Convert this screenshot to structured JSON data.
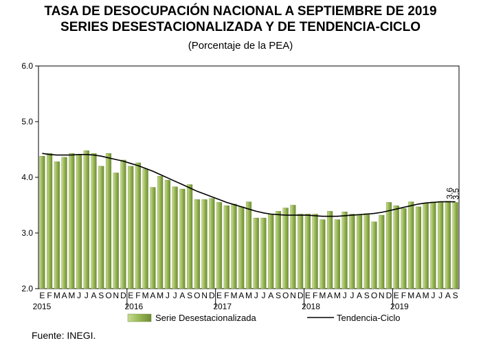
{
  "header": {
    "title": "TASA DE DESOCUPACIÓN NACIONAL A SEPTIEMBRE DE 2019",
    "subtitle": "SERIES DESESTACIONALIZADA Y DE TENDENCIA-CICLO",
    "unit": "(Porcentaje de la PEA)"
  },
  "footer": {
    "source": "Fuente: INEGI."
  },
  "colors": {
    "bar_fill": "#9bbb59",
    "bar_dark": "#6f8a35",
    "trend": "#000000"
  },
  "chart_data": {
    "type": "bar",
    "title": "TASA DE DESOCUPACIÓN NACIONAL A SEPTIEMBRE DE 2019",
    "ylim": [
      2.0,
      6.0
    ],
    "yticks": [
      "2.0",
      "3.0",
      "4.0",
      "5.0",
      "6.0"
    ],
    "grid": false,
    "legend": "bottom",
    "month_labels": [
      "E",
      "F",
      "M",
      "A",
      "M",
      "J",
      "J",
      "A",
      "S",
      "O",
      "N",
      "D",
      "E",
      "F",
      "M",
      "A",
      "M",
      "J",
      "J",
      "A",
      "S",
      "O",
      "N",
      "D",
      "E",
      "F",
      "M",
      "A",
      "M",
      "J",
      "J",
      "A",
      "S",
      "O",
      "N",
      "D",
      "E",
      "F",
      "M",
      "A",
      "M",
      "J",
      "J",
      "A",
      "S",
      "O",
      "N",
      "D",
      "E",
      "F",
      "M",
      "A",
      "M",
      "J",
      "J",
      "A",
      "S"
    ],
    "year_labels": [
      {
        "label": "2015",
        "index": 0
      },
      {
        "label": "2016",
        "index": 12
      },
      {
        "label": "2017",
        "index": 24
      },
      {
        "label": "2018",
        "index": 36
      },
      {
        "label": "2019",
        "index": 48
      }
    ],
    "series": [
      {
        "name": "Serie Desestacionalizada",
        "type": "bar",
        "values": [
          4.38,
          4.43,
          4.28,
          4.36,
          4.43,
          4.4,
          4.48,
          4.43,
          4.2,
          4.43,
          4.08,
          4.31,
          4.2,
          4.26,
          4.15,
          3.82,
          4.02,
          3.95,
          3.83,
          3.79,
          3.87,
          3.6,
          3.6,
          3.62,
          3.55,
          3.49,
          3.52,
          3.47,
          3.56,
          3.27,
          3.27,
          3.34,
          3.39,
          3.45,
          3.5,
          3.34,
          3.34,
          3.34,
          3.24,
          3.39,
          3.24,
          3.38,
          3.34,
          3.33,
          3.35,
          3.2,
          3.32,
          3.55,
          3.49,
          3.44,
          3.56,
          3.47,
          3.54,
          3.56,
          3.56,
          3.57,
          3.55
        ]
      },
      {
        "name": "Tendencia-Ciclo",
        "type": "line",
        "values": [
          4.43,
          4.41,
          4.4,
          4.4,
          4.4,
          4.41,
          4.41,
          4.4,
          4.38,
          4.35,
          4.32,
          4.29,
          4.25,
          4.21,
          4.16,
          4.11,
          4.05,
          3.99,
          3.93,
          3.87,
          3.81,
          3.75,
          3.7,
          3.65,
          3.6,
          3.55,
          3.51,
          3.47,
          3.43,
          3.39,
          3.36,
          3.34,
          3.33,
          3.32,
          3.32,
          3.32,
          3.32,
          3.31,
          3.3,
          3.3,
          3.3,
          3.31,
          3.32,
          3.33,
          3.34,
          3.35,
          3.37,
          3.4,
          3.43,
          3.46,
          3.49,
          3.52,
          3.54,
          3.55,
          3.56,
          3.56,
          3.56
        ]
      }
    ],
    "data_labels": [
      {
        "text": "3.6",
        "series": "Tendencia-Ciclo",
        "index": 56
      },
      {
        "text": "3.5",
        "series": "Serie Desestacionalizada",
        "index": 56
      }
    ]
  }
}
